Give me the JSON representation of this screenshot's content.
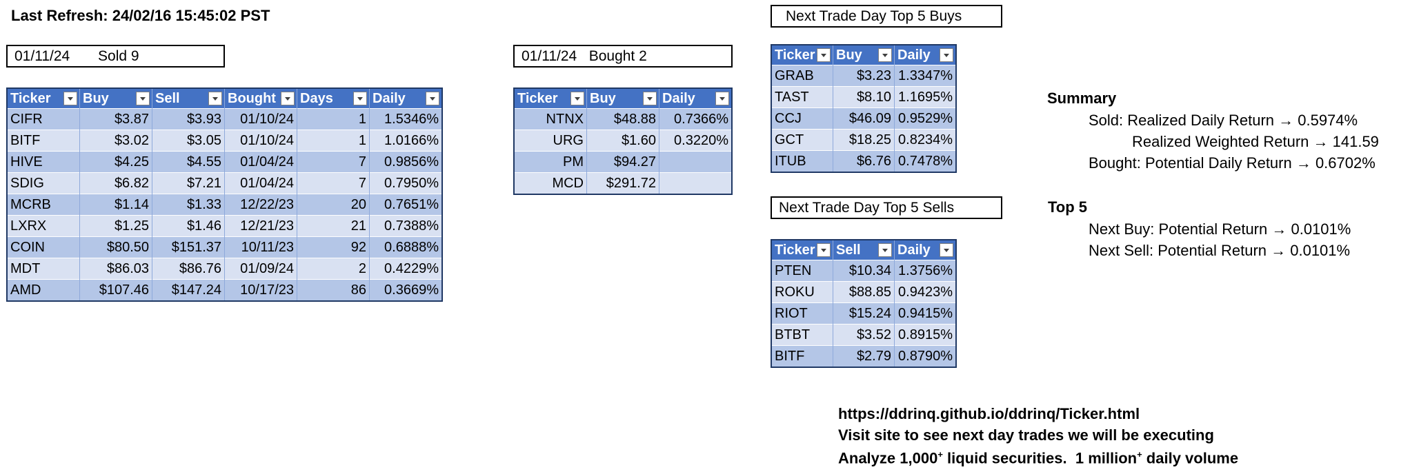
{
  "refresh": "Last Refresh: 24/02/16 15:45:02 PST",
  "sold_label": {
    "date": "01/11/24",
    "text": "Sold 9"
  },
  "bought_label": {
    "date": "01/11/24",
    "text": "Bought 2"
  },
  "buys_label": "Next Trade Day Top 5 Buys",
  "sells_label": "Next Trade Day Top 5 Sells",
  "sold_table": {
    "headers": [
      "Ticker",
      "Buy",
      "Sell",
      "Bought",
      "Days",
      "Daily"
    ],
    "rows": [
      [
        "CIFR",
        "$3.87",
        "$3.93",
        "01/10/24",
        "1",
        "1.5346%"
      ],
      [
        "BITF",
        "$3.02",
        "$3.05",
        "01/10/24",
        "1",
        "1.0166%"
      ],
      [
        "HIVE",
        "$4.25",
        "$4.55",
        "01/04/24",
        "7",
        "0.9856%"
      ],
      [
        "SDIG",
        "$6.82",
        "$7.21",
        "01/04/24",
        "7",
        "0.7950%"
      ],
      [
        "MCRB",
        "$1.14",
        "$1.33",
        "12/22/23",
        "20",
        "0.7651%"
      ],
      [
        "LXRX",
        "$1.25",
        "$1.46",
        "12/21/23",
        "21",
        "0.7388%"
      ],
      [
        "COIN",
        "$80.50",
        "$151.37",
        "10/11/23",
        "92",
        "0.6888%"
      ],
      [
        "MDT",
        "$86.03",
        "$86.76",
        "01/09/24",
        "2",
        "0.4229%"
      ],
      [
        "AMD",
        "$107.46",
        "$147.24",
        "10/17/23",
        "86",
        "0.3669%"
      ]
    ]
  },
  "bought_table": {
    "headers": [
      "Ticker",
      "Buy",
      "Daily"
    ],
    "rows": [
      [
        "NTNX",
        "$48.88",
        "0.7366%"
      ],
      [
        "URG",
        "$1.60",
        "0.3220%"
      ],
      [
        "PM",
        "$94.27",
        ""
      ],
      [
        "MCD",
        "$291.72",
        ""
      ]
    ]
  },
  "buys_table": {
    "headers": [
      "Ticker",
      "Buy",
      "Daily"
    ],
    "rows": [
      [
        "GRAB",
        "$3.23",
        "1.3347%"
      ],
      [
        "TAST",
        "$8.10",
        "1.1695%"
      ],
      [
        "CCJ",
        "$46.09",
        "0.9529%"
      ],
      [
        "GCT",
        "$18.25",
        "0.8234%"
      ],
      [
        "ITUB",
        "$6.76",
        "0.7478%"
      ]
    ]
  },
  "sells_table": {
    "headers": [
      "Ticker",
      "Sell",
      "Daily"
    ],
    "rows": [
      [
        "PTEN",
        "$10.34",
        "1.3756%"
      ],
      [
        "ROKU",
        "$88.85",
        "0.9423%"
      ],
      [
        "RIOT",
        "$15.24",
        "0.9415%"
      ],
      [
        "BTBT",
        "$3.52",
        "0.8915%"
      ],
      [
        "BITF",
        "$2.79",
        "0.8790%"
      ]
    ]
  },
  "summary": {
    "title": "Summary",
    "sold": "Sold: Realized Daily Return → 0.5974%",
    "weighted": "Realized Weighted Return → 141.59",
    "bought": "Bought: Potential Daily Return → 0.6702%"
  },
  "top5": {
    "title": "Top 5",
    "next_buy": "Next Buy: Potential Return → 0.0101%",
    "next_sell": "Next Sell: Potential Return → 0.0101%"
  },
  "footer": {
    "url": "https://ddrinq.github.io/ddrinq/Ticker.html",
    "visit": "Visit site to see next day trades we will be executing",
    "analyze_a": "Analyze 1,000",
    "sup1": "+",
    "analyze_b": " liquid securities.  1 million",
    "sup2": "+",
    "analyze_c": " daily volume"
  }
}
